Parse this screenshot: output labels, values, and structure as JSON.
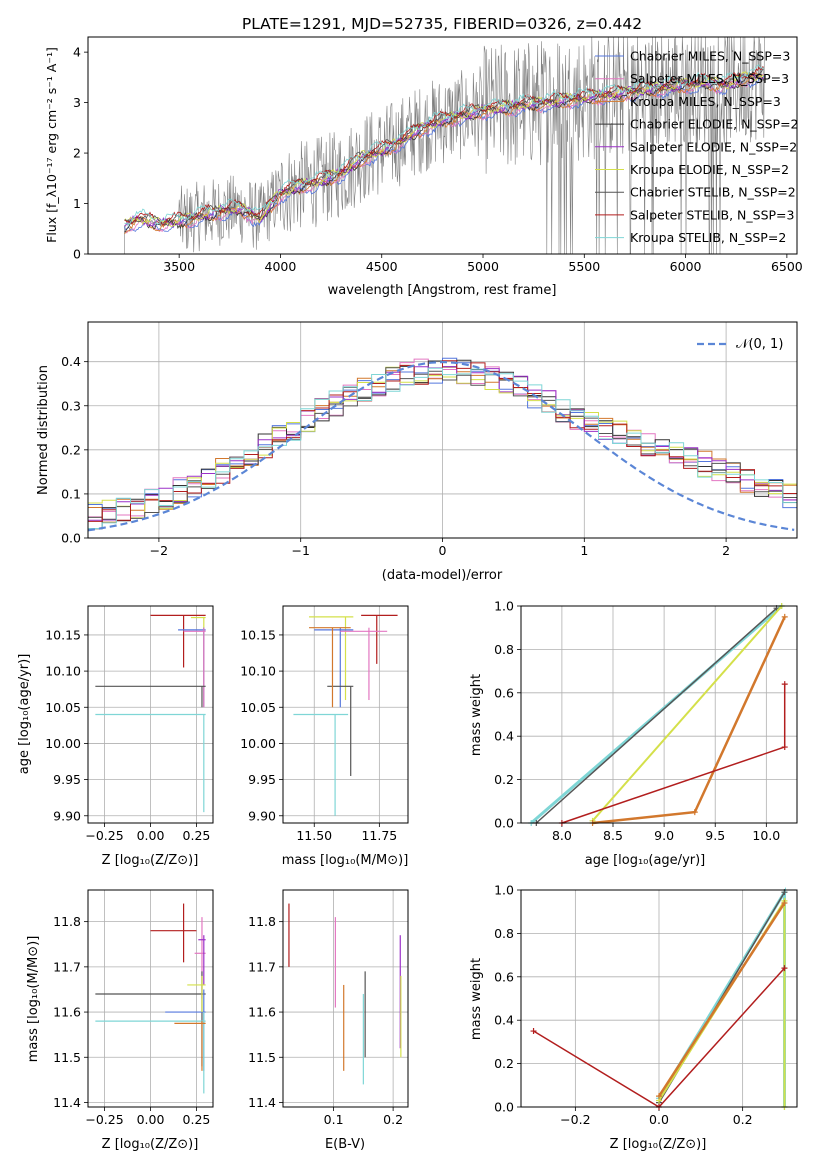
{
  "chart_data": [
    {
      "id": "spectrum",
      "type": "line",
      "title": "PLATE=1291, MJD=52735, FIBERID=0326, z=0.442",
      "xlabel": "wavelength [Angstrom, rest frame]",
      "ylabel": "Flux [f_λ10⁻¹⁷ erg cm⁻² s⁻¹ A⁻¹]",
      "xlim": [
        3050,
        6550
      ],
      "ylim": [
        0,
        4.3
      ],
      "xticks": [
        "3500",
        "4000",
        "4500",
        "5000",
        "5500",
        "6000",
        "6500"
      ],
      "yticks": [
        "0",
        "1",
        "2",
        "3",
        "4"
      ],
      "legend_position": "upper-right",
      "series": [
        {
          "name": "Chabrier MILES, N_SSP=3",
          "color": "#5577dd"
        },
        {
          "name": "Salpeter MILES, N_SSP=3",
          "color": "#e377c2"
        },
        {
          "name": "Kroupa MILES, N_SSP=3",
          "color": "#d2782d"
        },
        {
          "name": "Chabrier ELODIE, N_SSP=2",
          "color": "#333333"
        },
        {
          "name": "Salpeter ELODIE, N_SSP=2",
          "color": "#9b30c8"
        },
        {
          "name": "Kroupa ELODIE, N_SSP=2",
          "color": "#d4e04a"
        },
        {
          "name": "Chabrier STELIB, N_SSP=2",
          "color": "#555555"
        },
        {
          "name": "Salpeter STELIB, N_SSP=3",
          "color": "#b21e1e"
        },
        {
          "name": "Kroupa STELIB, N_SSP=2",
          "color": "#7fd6d6"
        }
      ],
      "model_curve": {
        "x": [
          3230,
          3300,
          3400,
          3500,
          3600,
          3700,
          3800,
          3900,
          3950,
          4000,
          4100,
          4200,
          4300,
          4400,
          4500,
          4600,
          4700,
          4800,
          4900,
          5000,
          5100,
          5200,
          5300,
          5400,
          5500,
          5600,
          5700,
          5800,
          5900,
          6000,
          6100,
          6200,
          6300,
          6400
        ],
        "y": [
          0.55,
          0.7,
          0.6,
          0.65,
          0.75,
          0.85,
          0.9,
          0.7,
          0.95,
          1.2,
          1.35,
          1.45,
          1.6,
          1.9,
          2.05,
          2.25,
          2.5,
          2.65,
          2.75,
          2.85,
          2.9,
          2.95,
          3.0,
          3.05,
          3.1,
          3.15,
          3.2,
          3.25,
          3.3,
          3.35,
          3.4,
          3.35,
          3.5,
          3.55
        ]
      }
    },
    {
      "id": "residuals",
      "type": "line",
      "xlabel": "(data-model)/error",
      "ylabel": "Normed distribution",
      "xlim": [
        -2.5,
        2.5
      ],
      "ylim": [
        0,
        0.49
      ],
      "xticks": [
        "−2",
        "−1",
        "0",
        "1",
        "2"
      ],
      "yticks": [
        "0.0",
        "0.1",
        "0.2",
        "0.3",
        "0.4"
      ],
      "legend": "𝒩(0, 1)",
      "gaussian_color": "#5b86d6"
    },
    {
      "id": "age-vs-Z",
      "type": "scatter",
      "xlabel": "Z [log₁₀(Z/Z⊙)]",
      "ylabel": "age  [log₁₀(age/yr)]",
      "xlim": [
        -0.34,
        0.34
      ],
      "ylim": [
        9.89,
        10.19
      ],
      "xticks": [
        "−0.25",
        "0.00",
        "0.25"
      ],
      "yticks": [
        "9.90",
        "9.95",
        "10.00",
        "10.05",
        "10.10",
        "10.15"
      ]
    },
    {
      "id": "age-vs-mass",
      "type": "scatter",
      "xlabel": "mass [log₁₀(M/M⊙)]",
      "xlim": [
        11.38,
        11.86
      ],
      "ylim": [
        9.89,
        10.19
      ],
      "xticks": [
        "11.50",
        "11.75"
      ],
      "yticks": [
        "9.90",
        "9.95",
        "10.00",
        "10.05",
        "10.10",
        "10.15"
      ]
    },
    {
      "id": "massweight-vs-age",
      "type": "line",
      "xlabel": "age  [log₁₀(age/yr)]",
      "ylabel": "mass weight",
      "xlim": [
        7.6,
        10.3
      ],
      "ylim": [
        0,
        1.0
      ],
      "xticks": [
        "8.0",
        "8.5",
        "9.0",
        "9.5",
        "10.0"
      ],
      "yticks": [
        "0.0",
        "0.2",
        "0.4",
        "0.6",
        "0.8",
        "1.0"
      ]
    },
    {
      "id": "mass-vs-Z",
      "type": "scatter",
      "xlabel": "Z [log₁₀(Z/Z⊙)]",
      "ylabel": "mass [log₁₀(M/M⊙)]",
      "xlim": [
        -0.34,
        0.34
      ],
      "ylim": [
        11.39,
        11.87
      ],
      "xticks": [
        "−0.25",
        "0.00",
        "0.25"
      ],
      "yticks": [
        "11.4",
        "11.5",
        "11.6",
        "11.7",
        "11.8"
      ]
    },
    {
      "id": "mass-vs-ebv",
      "type": "scatter",
      "xlabel": "E(B-V)",
      "xlim": [
        0.015,
        0.225
      ],
      "ylim": [
        11.39,
        11.87
      ],
      "xticks": [
        "0.1",
        "0.2"
      ],
      "yticks": [
        "11.4",
        "11.5",
        "11.6",
        "11.7",
        "11.8"
      ]
    },
    {
      "id": "massweight-vs-Z",
      "type": "line",
      "xlabel": "Z [log₁₀(Z/Z⊙)]",
      "ylabel": "mass weight",
      "xlim": [
        -0.33,
        0.33
      ],
      "ylim": [
        0,
        1.0
      ],
      "xticks": [
        "−0.2",
        "0.0",
        "0.2"
      ],
      "yticks": [
        "0.0",
        "0.2",
        "0.4",
        "0.6",
        "0.8",
        "1.0"
      ]
    }
  ]
}
